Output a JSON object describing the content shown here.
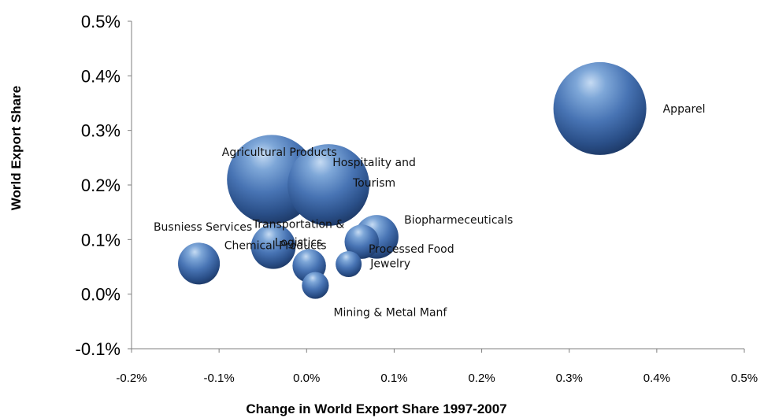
{
  "chart_data": {
    "type": "bubble",
    "title": "",
    "xlabel": "Change in World Export Share 1997-2007",
    "ylabel": "World Export Share",
    "xlim": [
      -0.2,
      0.5
    ],
    "ylim": [
      -0.1,
      0.5
    ],
    "x_ticks": [
      "-0.2%",
      "-0.1%",
      "0.0%",
      "0.1%",
      "0.2%",
      "0.3%",
      "0.4%",
      "0.5%"
    ],
    "y_ticks": [
      "0.5%",
      "0.4%",
      "0.3%",
      "0.2%",
      "0.1%",
      "0.0%",
      "-0.1%"
    ],
    "x_tick_values": [
      -0.2,
      -0.1,
      0.0,
      0.1,
      0.2,
      0.3,
      0.4,
      0.5
    ],
    "y_tick_values": [
      0.5,
      0.4,
      0.3,
      0.2,
      0.1,
      0.0,
      -0.1
    ],
    "grid": false,
    "legend": "none",
    "bubble_color": "#4f81bd",
    "points": [
      {
        "label": "Apparel",
        "x": 0.335,
        "y": 0.34,
        "size": 1.0
      },
      {
        "label": "Agricultural Products",
        "x": -0.04,
        "y": 0.21,
        "size": 0.96
      },
      {
        "label": "Hospitality and Tourism",
        "x": 0.025,
        "y": 0.2,
        "size": 0.88
      },
      {
        "label": "Biopharmeceuticals",
        "x": 0.08,
        "y": 0.105,
        "size": 0.47
      },
      {
        "label": "Transportation & Logistics",
        "x": -0.038,
        "y": 0.087,
        "size": 0.48
      },
      {
        "label": "Busniess Services",
        "x": -0.123,
        "y": 0.056,
        "size": 0.45
      },
      {
        "label": "Processed Food",
        "x": 0.063,
        "y": 0.096,
        "size": 0.37
      },
      {
        "label": "Chemical Products",
        "x": 0.003,
        "y": 0.052,
        "size": 0.36
      },
      {
        "label": "Jewelry",
        "x": 0.048,
        "y": 0.055,
        "size": 0.28
      },
      {
        "label": "Mining & Metal Manf",
        "x": 0.01,
        "y": 0.016,
        "size": 0.29
      }
    ]
  }
}
